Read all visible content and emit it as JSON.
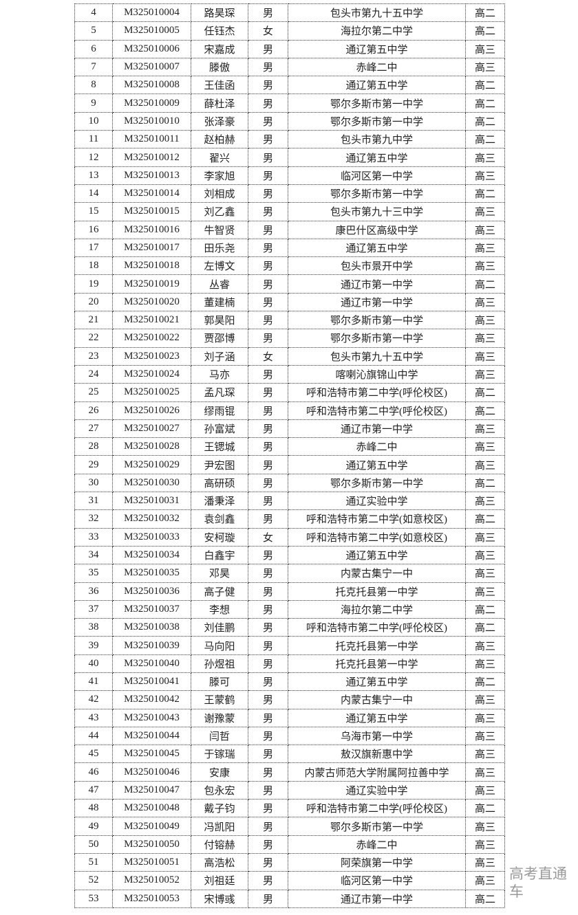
{
  "rows": [
    [
      "4",
      "M325010004",
      "路昊琛",
      "男",
      "包头市第九十五中学",
      "高二"
    ],
    [
      "5",
      "M325010005",
      "任钰杰",
      "女",
      "海拉尔第二中学",
      "高二"
    ],
    [
      "6",
      "M325010006",
      "宋嘉成",
      "男",
      "通辽第五中学",
      "高三"
    ],
    [
      "7",
      "M325010007",
      "滕傲",
      "男",
      "赤峰二中",
      "高三"
    ],
    [
      "8",
      "M325010008",
      "王佳函",
      "男",
      "通辽第五中学",
      "高二"
    ],
    [
      "9",
      "M325010009",
      "薛杜泽",
      "男",
      "鄂尔多斯市第一中学",
      "高二"
    ],
    [
      "10",
      "M325010010",
      "张泽豪",
      "男",
      "鄂尔多斯市第一中学",
      "高二"
    ],
    [
      "11",
      "M325010011",
      "赵柏赫",
      "男",
      "包头市第九中学",
      "高二"
    ],
    [
      "12",
      "M325010012",
      "翟兴",
      "男",
      "通辽第五中学",
      "高三"
    ],
    [
      "13",
      "M325010013",
      "李家旭",
      "男",
      "临河区第一中学",
      "高三"
    ],
    [
      "14",
      "M325010014",
      "刘相成",
      "男",
      "鄂尔多斯市第一中学",
      "高二"
    ],
    [
      "15",
      "M325010015",
      "刘乙鑫",
      "男",
      "包头市第九十三中学",
      "高三"
    ],
    [
      "16",
      "M325010016",
      "牛智贤",
      "男",
      "康巴什区高级中学",
      "高三"
    ],
    [
      "17",
      "M325010017",
      "田乐尧",
      "男",
      "通辽第五中学",
      "高三"
    ],
    [
      "18",
      "M325010018",
      "左博文",
      "男",
      "包头市景开中学",
      "高三"
    ],
    [
      "19",
      "M325010019",
      "丛睿",
      "男",
      "通辽市第一中学",
      "高二"
    ],
    [
      "20",
      "M325010020",
      "董建楠",
      "男",
      "通辽市第一中学",
      "高三"
    ],
    [
      "21",
      "M325010021",
      "郭昊阳",
      "男",
      "鄂尔多斯市第一中学",
      "高三"
    ],
    [
      "22",
      "M325010022",
      "贾邵博",
      "男",
      "鄂尔多斯市第一中学",
      "高三"
    ],
    [
      "23",
      "M325010023",
      "刘子涵",
      "女",
      "包头市第九十五中学",
      "高三"
    ],
    [
      "24",
      "M325010024",
      "马亦",
      "男",
      "喀喇沁旗锦山中学",
      "高三"
    ],
    [
      "25",
      "M325010025",
      "孟凡琛",
      "男",
      "呼和浩特市第二中学(呼伦校区)",
      "高二"
    ],
    [
      "26",
      "M325010026",
      "缪雨锟",
      "男",
      "呼和浩特市第二中学(呼伦校区)",
      "高二"
    ],
    [
      "27",
      "M325010027",
      "孙富斌",
      "男",
      "通辽市第一中学",
      "高三"
    ],
    [
      "28",
      "M325010028",
      "王锶城",
      "男",
      "赤峰二中",
      "高三"
    ],
    [
      "29",
      "M325010029",
      "尹宏图",
      "男",
      "通辽第五中学",
      "高三"
    ],
    [
      "30",
      "M325010030",
      "高研硕",
      "男",
      "鄂尔多斯市第一中学",
      "高二"
    ],
    [
      "31",
      "M325010031",
      "潘秉泽",
      "男",
      "通辽实验中学",
      "高三"
    ],
    [
      "32",
      "M325010032",
      "袁剑鑫",
      "男",
      "呼和浩特市第二中学(如意校区)",
      "高二"
    ],
    [
      "33",
      "M325010033",
      "安柯璇",
      "女",
      "呼和浩特市第二中学(如意校区)",
      "高三"
    ],
    [
      "34",
      "M325010034",
      "白鑫宇",
      "男",
      "通辽第五中学",
      "高三"
    ],
    [
      "35",
      "M325010035",
      "邓昊",
      "男",
      "内蒙古集宁一中",
      "高三"
    ],
    [
      "36",
      "M325010036",
      "高子健",
      "男",
      "托克托县第一中学",
      "高三"
    ],
    [
      "37",
      "M325010037",
      "李想",
      "男",
      "海拉尔第二中学",
      "高二"
    ],
    [
      "38",
      "M325010038",
      "刘佳鹏",
      "男",
      "呼和浩特市第二中学(呼伦校区)",
      "高二"
    ],
    [
      "39",
      "M325010039",
      "马向阳",
      "男",
      "托克托县第一中学",
      "高三"
    ],
    [
      "40",
      "M325010040",
      "孙煜祖",
      "男",
      "托克托县第一中学",
      "高三"
    ],
    [
      "41",
      "M325010041",
      "滕可",
      "男",
      "通辽第五中学",
      "高二"
    ],
    [
      "42",
      "M325010042",
      "王蒙鹤",
      "男",
      "内蒙古集宁一中",
      "高三"
    ],
    [
      "43",
      "M325010043",
      "谢豫蒙",
      "男",
      "通辽第五中学",
      "高三"
    ],
    [
      "44",
      "M325010044",
      "闫哲",
      "男",
      "乌海市第一中学",
      "高三"
    ],
    [
      "45",
      "M325010045",
      "于镓瑞",
      "男",
      "敖汉旗新惠中学",
      "高三"
    ],
    [
      "46",
      "M325010046",
      "安康",
      "男",
      "内蒙古师范大学附属阿拉善中学",
      "高三"
    ],
    [
      "47",
      "M325010047",
      "包永宏",
      "男",
      "通辽实验中学",
      "高三"
    ],
    [
      "48",
      "M325010048",
      "戴子钧",
      "男",
      "呼和浩特市第二中学(呼伦校区)",
      "高二"
    ],
    [
      "49",
      "M325010049",
      "冯凯阳",
      "男",
      "鄂尔多斯市第一中学",
      "高三"
    ],
    [
      "50",
      "M325010050",
      "付镕赫",
      "男",
      "赤峰二中",
      "高三"
    ],
    [
      "51",
      "M325010051",
      "高浩松",
      "男",
      "阿荣旗第一中学",
      "高三"
    ],
    [
      "52",
      "M325010052",
      "刘祖廷",
      "男",
      "临河区第一中学",
      "高三"
    ],
    [
      "53",
      "M325010053",
      "宋博彧",
      "男",
      "通辽市第一中学",
      "高二"
    ]
  ],
  "watermark": "高考直通车"
}
